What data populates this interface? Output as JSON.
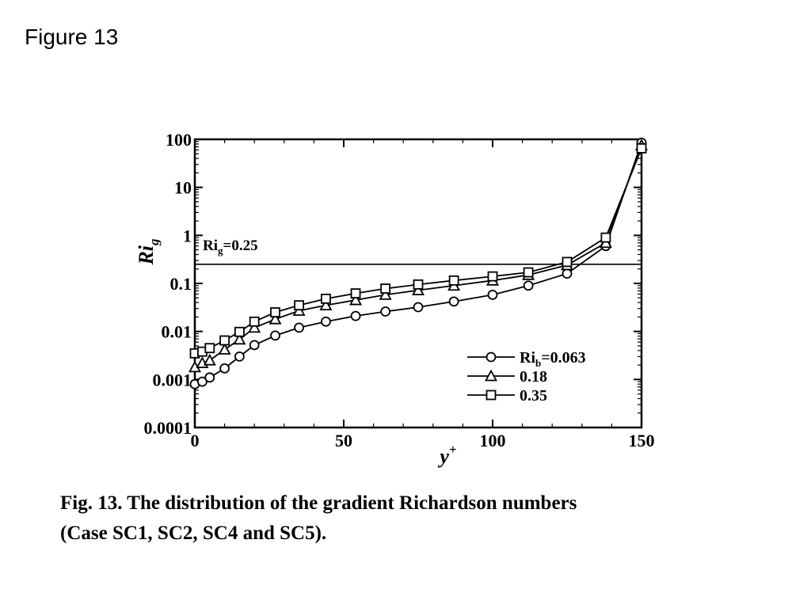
{
  "page": {
    "title": "Figure 13"
  },
  "caption": {
    "line1": "Fig. 13. The distribution of the gradient Richardson numbers",
    "line2": "(Case SC1, SC2, SC4 and SC5)."
  },
  "chart_data": {
    "type": "line",
    "xlabel": "y",
    "xlabel_sup": "+",
    "ylabel": "Ri",
    "ylabel_sub": "g",
    "xlim": [
      0,
      150
    ],
    "ylim": [
      0.0001,
      100
    ],
    "yscale": "log",
    "grid": false,
    "legend_position": "lower-right",
    "x_ticks": [
      0,
      50,
      100,
      150
    ],
    "x_tick_labels": [
      "0",
      "50",
      "100",
      "150"
    ],
    "y_ticks": [
      0.0001,
      0.001,
      0.01,
      0.1,
      1,
      10,
      100
    ],
    "y_tick_labels": [
      "0.0001",
      "0.001",
      "0.01",
      "0.1",
      "1",
      "10",
      "100"
    ],
    "reference_line": {
      "y": 0.25,
      "label": "Ri",
      "label_sub": "g",
      "label_value": "=0.25"
    },
    "series": [
      {
        "name": "Ri_b=0.063",
        "legend_prefix": "Ri",
        "legend_sub": "b",
        "legend_value": "=0.063",
        "marker": "circle",
        "x": [
          0,
          2.5,
          5,
          10,
          15,
          20,
          27,
          35,
          44,
          54,
          64,
          75,
          87,
          100,
          112,
          125,
          138,
          150
        ],
        "y": [
          0.0008,
          0.0009,
          0.0011,
          0.0017,
          0.003,
          0.0052,
          0.0082,
          0.012,
          0.016,
          0.021,
          0.026,
          0.032,
          0.042,
          0.058,
          0.09,
          0.16,
          0.6,
          85
        ]
      },
      {
        "name": "0.18",
        "legend_prefix": "",
        "legend_sub": "",
        "legend_value": "0.18",
        "marker": "triangle",
        "x": [
          0,
          2.5,
          5,
          10,
          15,
          20,
          27,
          35,
          44,
          54,
          64,
          75,
          87,
          100,
          112,
          125,
          138,
          150
        ],
        "y": [
          0.0018,
          0.0022,
          0.0025,
          0.0042,
          0.0068,
          0.012,
          0.018,
          0.027,
          0.035,
          0.045,
          0.058,
          0.072,
          0.09,
          0.115,
          0.15,
          0.24,
          0.7,
          75
        ]
      },
      {
        "name": "0.35",
        "legend_prefix": "",
        "legend_sub": "",
        "legend_value": "0.35",
        "marker": "square",
        "x": [
          0,
          2.5,
          5,
          10,
          15,
          20,
          27,
          35,
          44,
          54,
          64,
          75,
          87,
          100,
          112,
          125,
          138,
          150
        ],
        "y": [
          0.0035,
          0.0038,
          0.0045,
          0.0065,
          0.0098,
          0.016,
          0.025,
          0.035,
          0.048,
          0.062,
          0.078,
          0.095,
          0.115,
          0.14,
          0.17,
          0.28,
          0.9,
          65
        ]
      }
    ]
  }
}
